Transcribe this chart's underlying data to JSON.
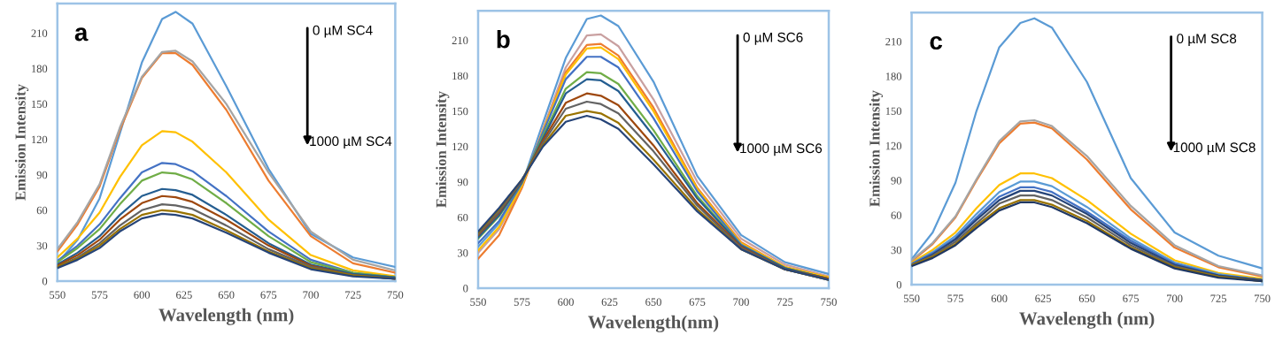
{
  "chart_data": [
    {
      "type": "line",
      "xlabel": "Wavelength (nm)",
      "ylabel": "Emission Intensity",
      "annotations": [
        "a",
        "0 µM SC4",
        "1000 µM SC4"
      ],
      "x": [
        550,
        562,
        575,
        587,
        600,
        612,
        620,
        630,
        650,
        675,
        700,
        725,
        750
      ],
      "xlim": [
        550,
        750
      ],
      "xticks": [
        550,
        575,
        600,
        625,
        650,
        675,
        700,
        725,
        750
      ],
      "ylim": [
        0,
        235
      ],
      "yticks": [
        0,
        30,
        60,
        90,
        120,
        150,
        180,
        210
      ],
      "grid": false,
      "legend": false,
      "marker": "none",
      "line_style": "solid",
      "series": [
        {
          "color": "#5b9bd5",
          "values": [
            15,
            35,
            70,
            125,
            185,
            222,
            228,
            218,
            165,
            95,
            40,
            20,
            12
          ]
        },
        {
          "color": "#ed7d31",
          "values": [
            25,
            48,
            80,
            128,
            172,
            193,
            193,
            183,
            145,
            85,
            38,
            15,
            7
          ]
        },
        {
          "color": "#a5a5a5",
          "values": [
            27,
            50,
            82,
            130,
            173,
            194,
            195,
            186,
            150,
            92,
            42,
            18,
            9
          ]
        },
        {
          "color": "#ffc000",
          "values": [
            20,
            36,
            58,
            88,
            115,
            127,
            126,
            118,
            92,
            52,
            22,
            9,
            4
          ]
        },
        {
          "color": "#4472c4",
          "values": [
            17,
            30,
            48,
            70,
            92,
            100,
            99,
            93,
            72,
            42,
            18,
            7,
            3
          ]
        },
        {
          "color": "#70ad47",
          "values": [
            16,
            28,
            44,
            65,
            85,
            92,
            91,
            86,
            66,
            38,
            16,
            7,
            3
          ]
        },
        {
          "color": "#255e91",
          "values": [
            14,
            24,
            38,
            56,
            72,
            78,
            77,
            73,
            56,
            32,
            14,
            6,
            3
          ]
        },
        {
          "color": "#9e480e",
          "values": [
            13,
            22,
            35,
            52,
            66,
            72,
            71,
            67,
            52,
            30,
            13,
            5,
            2
          ]
        },
        {
          "color": "#636363",
          "values": [
            12,
            20,
            32,
            47,
            60,
            65,
            64,
            61,
            47,
            27,
            12,
            5,
            2
          ]
        },
        {
          "color": "#997300",
          "values": [
            12,
            19,
            30,
            44,
            56,
            60,
            59,
            56,
            43,
            25,
            11,
            5,
            2
          ]
        },
        {
          "color": "#264478",
          "values": [
            11,
            18,
            28,
            42,
            53,
            57,
            56,
            53,
            41,
            24,
            10,
            4,
            2
          ]
        }
      ]
    },
    {
      "type": "line",
      "xlabel": "Wavelength(nm)",
      "ylabel": "Emission Intensity",
      "annotations": [
        "b",
        "0 µM SC6",
        "1000 µM SC6"
      ],
      "x": [
        550,
        562,
        575,
        587,
        600,
        612,
        620,
        630,
        650,
        675,
        700,
        725,
        750
      ],
      "xlim": [
        550,
        750
      ],
      "xticks": [
        550,
        575,
        600,
        625,
        650,
        675,
        700,
        725,
        750
      ],
      "ylim": [
        0,
        235
      ],
      "yticks": [
        0,
        30,
        60,
        90,
        120,
        150,
        180,
        210
      ],
      "grid": false,
      "legend": false,
      "marker": "none",
      "line_style": "solid",
      "series": [
        {
          "color": "#5b9bd5",
          "values": [
            35,
            55,
            88,
            140,
            195,
            228,
            231,
            222,
            175,
            95,
            45,
            22,
            12
          ]
        },
        {
          "color": "#c9a0a0",
          "values": [
            30,
            50,
            86,
            135,
            187,
            214,
            215,
            205,
            160,
            90,
            42,
            20,
            10
          ]
        },
        {
          "color": "#ed7d31",
          "values": [
            25,
            45,
            85,
            133,
            183,
            206,
            207,
            197,
            153,
            85,
            39,
            18,
            9
          ]
        },
        {
          "color": "#ffc000",
          "values": [
            32,
            52,
            87,
            133,
            181,
            203,
            204,
            194,
            150,
            84,
            38,
            18,
            9
          ]
        },
        {
          "color": "#4472c4",
          "values": [
            38,
            57,
            89,
            132,
            177,
            196,
            196,
            187,
            144,
            82,
            37,
            17,
            8
          ]
        },
        {
          "color": "#70ad47",
          "values": [
            42,
            61,
            90,
            129,
            169,
            183,
            182,
            173,
            134,
            78,
            36,
            17,
            8
          ]
        },
        {
          "color": "#255e91",
          "values": [
            43,
            62,
            90,
            127,
            165,
            177,
            176,
            167,
            129,
            76,
            36,
            17,
            8
          ]
        },
        {
          "color": "#9e480e",
          "values": [
            45,
            64,
            91,
            125,
            157,
            165,
            163,
            155,
            121,
            72,
            35,
            16,
            8
          ]
        },
        {
          "color": "#636363",
          "values": [
            46,
            65,
            91,
            123,
            152,
            158,
            156,
            148,
            116,
            70,
            34,
            16,
            7
          ]
        },
        {
          "color": "#997300",
          "values": [
            47,
            67,
            92,
            121,
            146,
            150,
            148,
            140,
            109,
            67,
            33,
            16,
            7
          ]
        },
        {
          "color": "#264478",
          "values": [
            48,
            68,
            92,
            120,
            141,
            146,
            143,
            135,
            105,
            65,
            33,
            16,
            7
          ]
        }
      ]
    },
    {
      "type": "line",
      "xlabel": "Wavelength (nm)",
      "ylabel": "Emission Intensity",
      "annotations": [
        "c",
        "0 µM SC8",
        "1000 µM SC8"
      ],
      "x": [
        550,
        562,
        575,
        587,
        600,
        612,
        620,
        630,
        650,
        675,
        700,
        725,
        750
      ],
      "xlim": [
        550,
        750
      ],
      "xticks": [
        550,
        575,
        600,
        625,
        650,
        675,
        700,
        725,
        750
      ],
      "ylim": [
        0,
        235
      ],
      "yticks": [
        0,
        30,
        60,
        90,
        120,
        150,
        180,
        210
      ],
      "grid": false,
      "legend": false,
      "marker": "none",
      "line_style": "solid",
      "series": [
        {
          "color": "#5b9bd5",
          "values": [
            22,
            45,
            88,
            150,
            205,
            226,
            230,
            222,
            175,
            92,
            45,
            25,
            14
          ]
        },
        {
          "color": "#ed7d31",
          "values": [
            20,
            35,
            58,
            90,
            122,
            139,
            140,
            135,
            108,
            65,
            32,
            15,
            7
          ]
        },
        {
          "color": "#a5a5a5",
          "values": [
            21,
            36,
            59,
            91,
            124,
            141,
            142,
            137,
            111,
            68,
            34,
            16,
            8
          ]
        },
        {
          "color": "#ffc000",
          "values": [
            19,
            30,
            45,
            66,
            86,
            96,
            96,
            92,
            73,
            44,
            21,
            10,
            5
          ]
        },
        {
          "color": "#5b9bd5",
          "values": [
            18,
            28,
            42,
            61,
            80,
            89,
            89,
            85,
            67,
            40,
            19,
            9,
            4
          ]
        },
        {
          "color": "#4472c4",
          "values": [
            18,
            27,
            40,
            58,
            76,
            84,
            84,
            80,
            63,
            38,
            18,
            8,
            4
          ]
        },
        {
          "color": "#264478",
          "values": [
            17,
            26,
            39,
            56,
            73,
            81,
            81,
            77,
            61,
            36,
            17,
            8,
            4
          ]
        },
        {
          "color": "#636363",
          "values": [
            17,
            25,
            37,
            53,
            70,
            77,
            77,
            73,
            58,
            34,
            16,
            7,
            3
          ]
        },
        {
          "color": "#997300",
          "values": [
            17,
            24,
            35,
            51,
            66,
            73,
            73,
            69,
            55,
            32,
            15,
            7,
            3
          ]
        },
        {
          "color": "#203864",
          "values": [
            16,
            23,
            34,
            49,
            64,
            71,
            71,
            67,
            53,
            31,
            14,
            6,
            3
          ]
        }
      ]
    }
  ]
}
